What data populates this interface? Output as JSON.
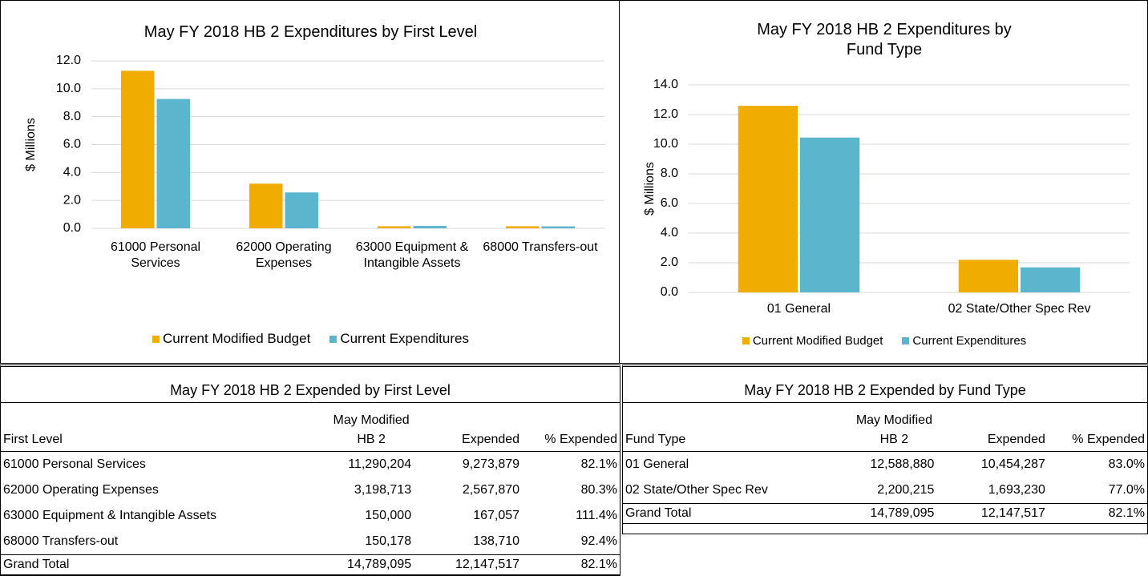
{
  "chart_data": [
    {
      "type": "bar",
      "title": "May FY 2018 HB 2 Expenditures  by First Level",
      "y_label": "$ Millions",
      "categories": [
        "61000 Personal Services",
        "62000 Operating Expenses",
        "63000 Equipment & Intangible Assets",
        "68000 Transfers-out"
      ],
      "series": [
        {
          "name": "Current Modified Budget",
          "color": "#f0ad00",
          "values": [
            11.29,
            3.2,
            0.15,
            0.15
          ]
        },
        {
          "name": "Current Expenditures",
          "color": "#5bb5cc",
          "values": [
            9.27,
            2.57,
            0.17,
            0.14
          ]
        }
      ],
      "ylim": [
        0,
        12
      ],
      "yticks": [
        {
          "value": 0,
          "label": "0.0"
        },
        {
          "value": 2,
          "label": "2.0"
        },
        {
          "value": 4,
          "label": "4.0"
        },
        {
          "value": 6,
          "label": "6.0"
        },
        {
          "value": 8,
          "label": "8.0"
        },
        {
          "value": 10,
          "label": "10.0"
        },
        {
          "value": 12,
          "label": "12.0"
        }
      ],
      "grid": true,
      "legend": "bottom"
    },
    {
      "type": "bar",
      "title": "May FY 2018 HB 2 Expenditures  by Fund Type",
      "y_label": "$ Millions",
      "categories": [
        "01 General",
        "02 State/Other Spec Rev"
      ],
      "series": [
        {
          "name": "Current Modified Budget",
          "color": "#f0ad00",
          "values": [
            12.59,
            2.2
          ]
        },
        {
          "name": "Current Expenditures",
          "color": "#5bb5cc",
          "values": [
            10.45,
            1.69
          ]
        }
      ],
      "ylim": [
        0,
        14
      ],
      "yticks": [
        {
          "value": 0,
          "label": "0.0"
        },
        {
          "value": 2,
          "label": "2.0"
        },
        {
          "value": 4,
          "label": "4.0"
        },
        {
          "value": 6,
          "label": "6.0"
        },
        {
          "value": 8,
          "label": "8.0"
        },
        {
          "value": 10,
          "label": "10.0"
        },
        {
          "value": 12,
          "label": "12.0"
        },
        {
          "value": 14,
          "label": "14.0"
        }
      ],
      "grid": true,
      "legend": "bottom"
    }
  ],
  "tables": [
    {
      "title": "May FY 2018 HB 2 Expended by First Level",
      "columns": [
        "First Level",
        "May Modified HB 2",
        "Expended",
        "% Expended"
      ],
      "rows": [
        [
          "61000 Personal Services",
          "11,290,204",
          "9,273,879",
          "82.1%"
        ],
        [
          "62000 Operating Expenses",
          "3,198,713",
          "2,567,870",
          "80.3%"
        ],
        [
          "63000 Equipment & Intangible Assets",
          "150,000",
          "167,057",
          "111.4%"
        ],
        [
          "68000 Transfers-out",
          "150,178",
          "138,710",
          "92.4%"
        ]
      ],
      "total": [
        "Grand Total",
        "14,789,095",
        "12,147,517",
        "82.1%"
      ]
    },
    {
      "title": "May FY 2018 HB 2 Expended by Fund Type",
      "columns": [
        "Fund Type",
        "May Modified HB 2",
        "Expended",
        "% Expended"
      ],
      "rows": [
        [
          "01 General",
          "12,588,880",
          "10,454,287",
          "83.0%"
        ],
        [
          "02 State/Other Spec Rev",
          "2,200,215",
          "1,693,230",
          "77.0%"
        ]
      ],
      "total": [
        "Grand Total",
        "14,789,095",
        "12,147,517",
        "82.1%"
      ]
    }
  ]
}
